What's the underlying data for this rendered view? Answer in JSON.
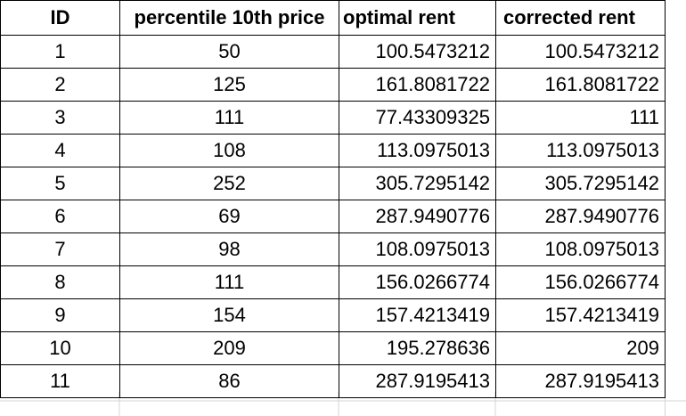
{
  "table": {
    "headers": {
      "id": "ID",
      "percentile": "percentile 10th price",
      "optimal": "optimal rent",
      "corrected": "corrected rent"
    },
    "rows": [
      {
        "id": "1",
        "percentile": "50",
        "optimal": "100.5473212",
        "corrected": "100.5473212"
      },
      {
        "id": "2",
        "percentile": "125",
        "optimal": "161.8081722",
        "corrected": "161.8081722"
      },
      {
        "id": "3",
        "percentile": "111",
        "optimal": "77.43309325",
        "corrected": "111"
      },
      {
        "id": "4",
        "percentile": "108",
        "optimal": "113.0975013",
        "corrected": "113.0975013"
      },
      {
        "id": "5",
        "percentile": "252",
        "optimal": "305.7295142",
        "corrected": "305.7295142"
      },
      {
        "id": "6",
        "percentile": "69",
        "optimal": "287.9490776",
        "corrected": "287.9490776"
      },
      {
        "id": "7",
        "percentile": "98",
        "optimal": "108.0975013",
        "corrected": "108.0975013"
      },
      {
        "id": "8",
        "percentile": "111",
        "optimal": "156.0266774",
        "corrected": "156.0266774"
      },
      {
        "id": "9",
        "percentile": "154",
        "optimal": "157.4213419",
        "corrected": "157.4213419"
      },
      {
        "id": "10",
        "percentile": "209",
        "optimal": "195.278636",
        "corrected": "209"
      },
      {
        "id": "11",
        "percentile": "86",
        "optimal": "287.9195413",
        "corrected": "287.9195413"
      }
    ]
  }
}
